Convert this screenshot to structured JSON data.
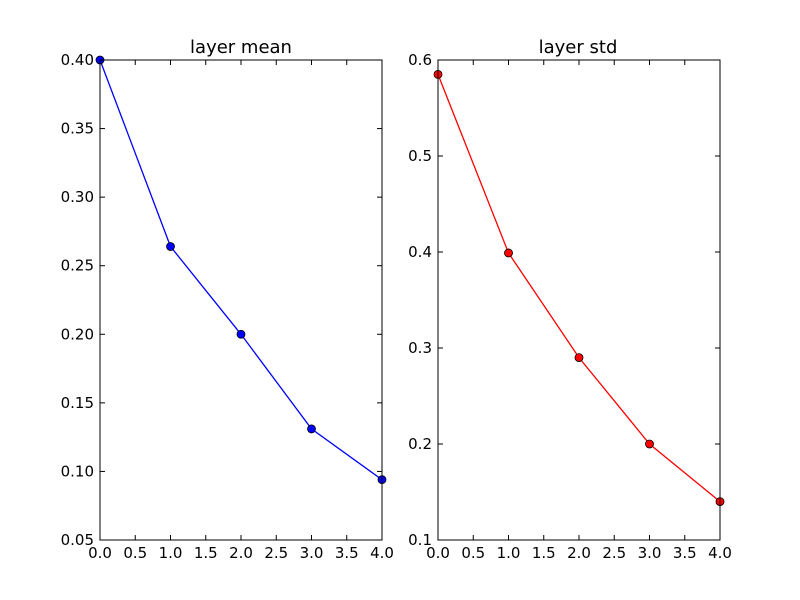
{
  "chart_data": [
    {
      "type": "line",
      "title": "layer mean",
      "xlabel": "",
      "ylabel": "",
      "xlim": [
        0.0,
        4.0
      ],
      "ylim": [
        0.05,
        0.4
      ],
      "x_ticks": [
        "0.0",
        "0.5",
        "1.0",
        "1.5",
        "2.0",
        "2.5",
        "3.0",
        "3.5",
        "4.0"
      ],
      "y_ticks": [
        "0.05",
        "0.10",
        "0.15",
        "0.20",
        "0.25",
        "0.30",
        "0.35",
        "0.40"
      ],
      "series": [
        {
          "name": "layer mean",
          "color": "#0000ff",
          "marker": "circle",
          "x": [
            0,
            1,
            2,
            3,
            4
          ],
          "y": [
            0.4,
            0.264,
            0.2,
            0.131,
            0.094
          ]
        }
      ]
    },
    {
      "type": "line",
      "title": "layer std",
      "xlabel": "",
      "ylabel": "",
      "xlim": [
        0.0,
        4.0
      ],
      "ylim": [
        0.1,
        0.6
      ],
      "x_ticks": [
        "0.0",
        "0.5",
        "1.0",
        "1.5",
        "2.0",
        "2.5",
        "3.0",
        "3.5",
        "4.0"
      ],
      "y_ticks": [
        "0.1",
        "0.2",
        "0.3",
        "0.4",
        "0.5",
        "0.6"
      ],
      "series": [
        {
          "name": "layer std",
          "color": "#ff0000",
          "marker": "circle",
          "x": [
            0,
            1,
            2,
            3,
            4
          ],
          "y": [
            0.585,
            0.399,
            0.29,
            0.2,
            0.14
          ]
        }
      ]
    }
  ]
}
